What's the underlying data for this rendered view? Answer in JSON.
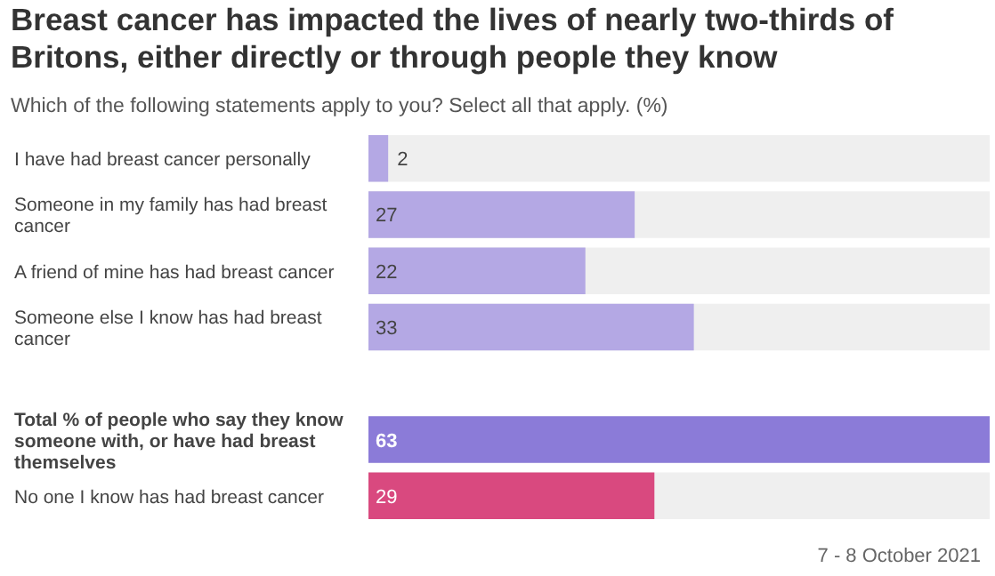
{
  "chart_data": {
    "type": "bar",
    "orientation": "horizontal",
    "title": "Breast cancer has impacted the lives of nearly two-thirds of Britons, either directly or through people they know",
    "subtitle": "Which of the following statements apply to you? Select all that apply. (%)",
    "categories": [
      "I have had breast cancer personally",
      "Someone in my family has had breast cancer",
      "A friend of mine has had breast cancer",
      "Someone else I know has had breast cancer",
      null,
      "Total % of people who say they know someone with, or have had breast themselves",
      "No one I know has had breast cancer"
    ],
    "values": [
      2,
      27,
      22,
      33,
      null,
      63,
      29
    ],
    "colors": [
      "#b4a8e4",
      "#b4a8e4",
      "#b4a8e4",
      "#b4a8e4",
      null,
      "#8b7bd8",
      "#d9497f"
    ],
    "data_labels": true,
    "annotations": [
      "7 - 8 October 2021"
    ]
  }
}
